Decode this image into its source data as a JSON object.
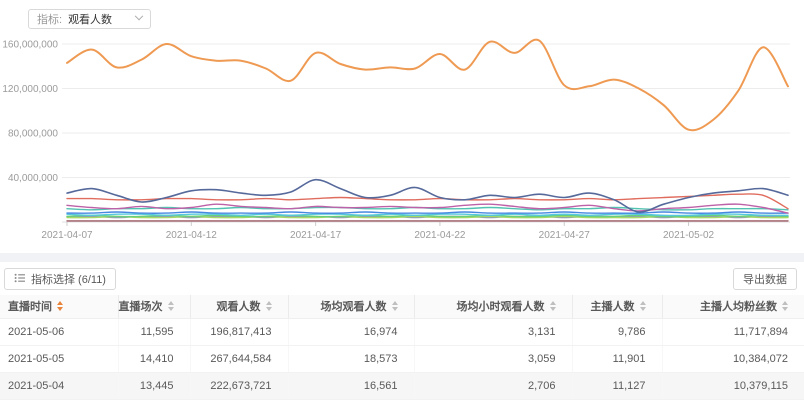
{
  "header": {
    "metric_prefix": "指标:",
    "metric_value": "观看人数"
  },
  "chart_data": {
    "type": "line",
    "title": "",
    "xlabel": "",
    "ylabel": "",
    "value_unit": 1000000,
    "num_points": 30,
    "ylim": [
      0,
      160000000
    ],
    "grid": true,
    "legend_position": "none",
    "y_tick_labels": [
      "160,000,000",
      "120,000,000",
      "80,000,000",
      "40,000,000"
    ],
    "y_tick_values": [
      160,
      120,
      80,
      40
    ],
    "x_tick_labels": [
      "2021-04-07",
      "2021-04-12",
      "2021-04-17",
      "2021-04-22",
      "2021-04-27",
      "2021-05-02"
    ],
    "x_tick_indices": [
      0,
      5,
      10,
      15,
      20,
      25
    ],
    "series": [
      {
        "name": "观看人数",
        "color": "#ef9a53",
        "width": 2,
        "values": [
          143,
          155,
          139,
          146,
          160,
          149,
          145,
          145,
          138,
          127,
          152,
          142,
          137,
          139,
          138,
          151,
          137,
          162,
          152,
          163,
          123,
          122,
          128,
          120,
          105,
          83,
          92,
          118,
          157,
          122
        ]
      },
      {
        "name": "navy-line",
        "color": "#56699b",
        "width": 1.6,
        "values": [
          26,
          30,
          24,
          18,
          22,
          28,
          29,
          26,
          24,
          27,
          38,
          30,
          22,
          24,
          31,
          22,
          20,
          24,
          22,
          25,
          22,
          26,
          20,
          9,
          16,
          22,
          26,
          28,
          30,
          24
        ]
      },
      {
        "name": "coral-line",
        "color": "#e06c5e",
        "width": 1.4,
        "values": [
          21,
          21,
          20,
          20,
          21,
          21,
          20,
          20,
          21,
          20,
          21,
          22,
          21,
          20,
          20,
          21,
          20,
          20,
          21,
          20,
          20,
          21,
          20,
          21,
          22,
          23,
          24,
          25,
          24,
          12
        ]
      },
      {
        "name": "magenta-line",
        "color": "#bd62a8",
        "width": 1.4,
        "values": [
          15,
          13,
          12,
          14,
          12,
          13,
          16,
          14,
          13,
          12,
          14,
          13,
          13,
          14,
          13,
          13,
          15,
          16,
          14,
          12,
          13,
          15,
          12,
          10,
          12,
          13,
          15,
          16,
          13,
          8
        ]
      },
      {
        "name": "teal-line",
        "color": "#53c3b1",
        "width": 1.4,
        "values": [
          12,
          11,
          12,
          12,
          13,
          12,
          12,
          13,
          12,
          12,
          13,
          13,
          12,
          12,
          13,
          12,
          12,
          13,
          12,
          11,
          12,
          12,
          13,
          12,
          11,
          11,
          12,
          12,
          12,
          11
        ]
      },
      {
        "name": "blue-line",
        "color": "#4788e0",
        "width": 1.4,
        "values": [
          8,
          8,
          9,
          8,
          8,
          9,
          8,
          8,
          8,
          9,
          8,
          8,
          9,
          8,
          8,
          8,
          9,
          8,
          8,
          8,
          9,
          8,
          8,
          8,
          9,
          8,
          8,
          9,
          8,
          8
        ]
      },
      {
        "name": "cyan-line",
        "color": "#56c8de",
        "width": 1.4,
        "values": [
          7,
          6,
          7,
          7,
          6,
          7,
          7,
          6,
          7,
          6,
          7,
          7,
          6,
          7,
          6,
          7,
          7,
          6,
          7,
          6,
          7,
          6,
          7,
          7,
          6,
          6,
          7,
          7,
          6,
          6
        ]
      },
      {
        "name": "green-line",
        "color": "#67cf7d",
        "width": 1.4,
        "values": [
          5,
          6,
          5,
          5,
          6,
          5,
          6,
          5,
          5,
          6,
          5,
          5,
          6,
          5,
          6,
          5,
          5,
          6,
          5,
          5,
          6,
          5,
          5,
          6,
          5,
          5,
          6,
          5,
          6,
          5
        ]
      },
      {
        "name": "yellowgreen-line",
        "color": "#a6d965",
        "width": 1.4,
        "values": [
          4,
          4,
          5,
          4,
          4,
          5,
          4,
          4,
          5,
          4,
          4,
          5,
          4,
          4,
          5,
          4,
          4,
          5,
          4,
          4,
          5,
          4,
          4,
          4,
          5,
          4,
          4,
          5,
          4,
          4
        ]
      },
      {
        "name": "slate-line",
        "color": "#8e9cb5",
        "width": 1.4,
        "values": [
          5,
          5,
          4,
          5,
          5,
          4,
          5,
          5,
          4,
          5,
          5,
          4,
          5,
          5,
          4,
          5,
          5,
          4,
          5,
          5,
          4,
          5,
          5,
          5,
          4,
          5,
          5,
          4,
          5,
          5
        ]
      },
      {
        "name": "maroon-line",
        "color": "#9b5a62",
        "width": 1.4,
        "values": [
          1,
          1,
          1,
          1,
          1,
          1,
          1,
          1,
          1,
          1,
          1,
          1,
          1,
          1,
          1,
          1,
          1,
          1,
          1,
          1,
          1,
          1,
          1,
          1,
          1,
          1,
          1,
          1,
          1,
          1
        ]
      }
    ]
  },
  "toolbar": {
    "metric_select_label": "指标选择 (6/11)",
    "export_label": "导出数据"
  },
  "table": {
    "columns": [
      {
        "label": "直播时间",
        "align": "left",
        "sort": "active"
      },
      {
        "label": "直播场次",
        "align": "right",
        "sort": "default"
      },
      {
        "label": "观看人数",
        "align": "right",
        "sort": "default"
      },
      {
        "label": "场均观看人数",
        "align": "right",
        "sort": "default"
      },
      {
        "label": "场均小时观看人数",
        "align": "right",
        "sort": "default"
      },
      {
        "label": "主播人数",
        "align": "right",
        "sort": "default"
      },
      {
        "label": "主播人均粉丝数",
        "align": "right",
        "sort": "default"
      }
    ],
    "rows": [
      [
        "2021-05-06",
        "11,595",
        "196,817,413",
        "16,974",
        "3,131",
        "9,786",
        "11,717,894"
      ],
      [
        "2021-05-05",
        "14,410",
        "267,644,584",
        "18,573",
        "3,059",
        "11,901",
        "10,384,072"
      ],
      [
        "2021-05-04",
        "13,445",
        "222,673,721",
        "16,561",
        "2,706",
        "11,127",
        "10,379,115"
      ]
    ]
  },
  "colors": {
    "accent_orange": "#e8833a",
    "grid_line": "#ececec",
    "axis_text": "#9b9b9b"
  }
}
